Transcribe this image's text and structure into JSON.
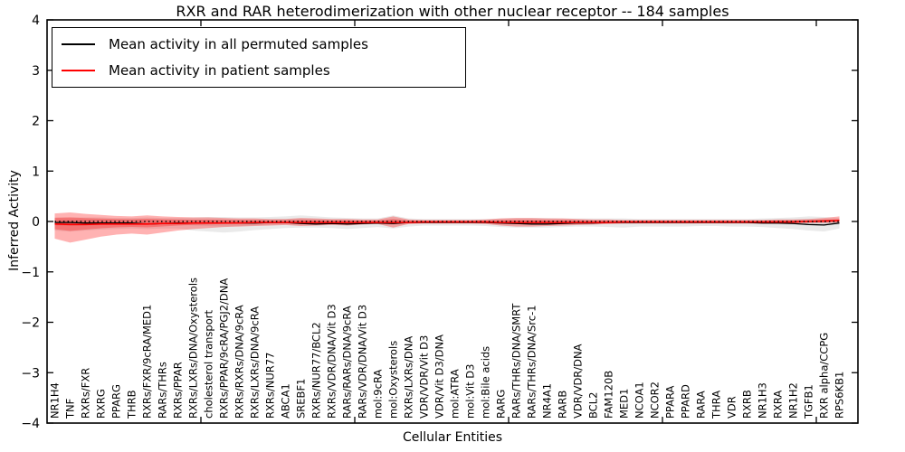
{
  "title": "RXR and RAR heterodimerization with other nuclear receptor -- 184 samples",
  "axes": {
    "ylabel": "Inferred Activity",
    "xlabel": "Cellular Entities",
    "ytick_labels": [
      "4",
      "3",
      "2",
      "1",
      "0",
      "−1",
      "−2",
      "−3",
      "−4"
    ],
    "ytick_values": [
      4,
      3,
      2,
      1,
      0,
      -1,
      -2,
      -3,
      -4
    ]
  },
  "legend": {
    "items": [
      {
        "label": "Mean activity in all permuted samples",
        "color": "#000000"
      },
      {
        "label": "Mean activity in patient samples",
        "color": "#ff0000"
      }
    ]
  },
  "chart_data": {
    "type": "line",
    "title": "RXR and RAR heterodimerization with other nuclear receptor -- 184 samples",
    "xlabel": "Cellular Entities",
    "ylabel": "Inferred Activity",
    "ylim": [
      -4,
      4
    ],
    "grid": false,
    "legend_position": "upper left",
    "zero_line": {
      "y": 0,
      "style": "dotted",
      "color": "#000000"
    },
    "inner_band_scale": 0.45,
    "categories": [
      "NR1H4",
      "TNF",
      "RXRs/FXR",
      "RXRG",
      "PPARG",
      "THRB",
      "RXRs/FXR/9cRA/MED1",
      "RARs/THRs",
      "RXRs/PPAR",
      "RXRs/LXRs/DNA/Oxysterols",
      "cholesterol transport",
      "RXRs/PPAR/9cRA/PGJ2/DNA",
      "RXRs/RXRs/DNA/9cRA",
      "RXRs/LXRs/DNA/9cRA",
      "RXRs/NUR77",
      "ABCA1",
      "SREBF1",
      "RXRs/NUR77/BCL2",
      "RXRs/VDR/DNA/Vit D3",
      "RARs/RARs/DNA/9cRA",
      "RARs/VDR/DNA/Vit D3",
      "mol:9cRA",
      "mol:Oxysterols",
      "RXRs/LXRs/DNA",
      "VDR/VDR/Vit D3",
      "VDR/Vit D3/DNA",
      "mol:ATRA",
      "mol:Vit D3",
      "mol:Bile acids",
      "RARG",
      "RARs/THRs/DNA/SMRT",
      "RARs/THRs/DNA/Src-1",
      "NR4A1",
      "RARB",
      "VDR/VDR/DNA",
      "BCL2",
      "FAM120B",
      "MED1",
      "NCOA1",
      "NCOR2",
      "PPARA",
      "PPARD",
      "RARA",
      "THRA",
      "VDR",
      "RXRB",
      "NR1H3",
      "RXRA",
      "NR1H2",
      "TGFB1",
      "RXR alpha/CCPG",
      "RPS6KB1"
    ],
    "series": [
      {
        "name": "Mean activity in all permuted samples",
        "color": "#000000",
        "band_color": "#888888",
        "values": [
          -0.02,
          -0.02,
          -0.03,
          -0.03,
          -0.03,
          -0.03,
          -0.05,
          -0.04,
          -0.03,
          -0.03,
          -0.03,
          -0.03,
          -0.03,
          -0.03,
          -0.02,
          -0.02,
          -0.04,
          -0.05,
          -0.04,
          -0.05,
          -0.04,
          -0.03,
          -0.04,
          -0.02,
          -0.02,
          -0.02,
          -0.02,
          -0.02,
          -0.02,
          -0.03,
          -0.04,
          -0.05,
          -0.05,
          -0.04,
          -0.03,
          -0.03,
          -0.02,
          -0.02,
          -0.02,
          -0.02,
          -0.02,
          -0.02,
          -0.02,
          -0.02,
          -0.02,
          -0.02,
          -0.03,
          -0.03,
          -0.04,
          -0.06,
          -0.07,
          -0.03
        ],
        "band_upper": [
          0.08,
          0.08,
          0.08,
          0.08,
          0.07,
          0.07,
          0.08,
          0.07,
          0.07,
          0.08,
          0.09,
          0.09,
          0.08,
          0.08,
          0.09,
          0.1,
          0.12,
          0.1,
          0.08,
          0.07,
          0.06,
          0.06,
          0.12,
          0.06,
          0.05,
          0.05,
          0.05,
          0.05,
          0.05,
          0.06,
          0.07,
          0.07,
          0.07,
          0.06,
          0.06,
          0.06,
          0.06,
          0.06,
          0.05,
          0.05,
          0.05,
          0.05,
          0.05,
          0.05,
          0.05,
          0.05,
          0.06,
          0.07,
          0.08,
          0.1,
          0.09,
          0.07
        ],
        "band_lower": [
          -0.18,
          -0.2,
          -0.18,
          -0.16,
          -0.15,
          -0.14,
          -0.15,
          -0.14,
          -0.14,
          -0.18,
          -0.2,
          -0.22,
          -0.2,
          -0.17,
          -0.15,
          -0.13,
          -0.12,
          -0.12,
          -0.13,
          -0.15,
          -0.13,
          -0.11,
          -0.14,
          -0.1,
          -0.08,
          -0.08,
          -0.08,
          -0.08,
          -0.09,
          -0.11,
          -0.12,
          -0.12,
          -0.12,
          -0.11,
          -0.1,
          -0.1,
          -0.11,
          -0.12,
          -0.1,
          -0.1,
          -0.1,
          -0.1,
          -0.09,
          -0.09,
          -0.1,
          -0.1,
          -0.11,
          -0.13,
          -0.15,
          -0.18,
          -0.2,
          -0.14
        ]
      },
      {
        "name": "Mean activity in patient samples",
        "color": "#ff0000",
        "band_color": "#ff0000",
        "values": [
          -0.05,
          -0.06,
          -0.06,
          -0.05,
          -0.05,
          -0.05,
          -0.05,
          -0.04,
          -0.04,
          -0.03,
          -0.03,
          -0.03,
          -0.03,
          -0.02,
          -0.02,
          -0.02,
          -0.02,
          -0.02,
          -0.02,
          -0.02,
          -0.02,
          -0.02,
          -0.02,
          -0.02,
          -0.01,
          -0.01,
          -0.01,
          -0.01,
          -0.01,
          -0.02,
          -0.02,
          -0.02,
          -0.02,
          -0.02,
          -0.02,
          -0.02,
          -0.02,
          -0.01,
          -0.01,
          -0.01,
          -0.01,
          -0.01,
          -0.01,
          -0.01,
          -0.01,
          -0.01,
          -0.01,
          -0.01,
          -0.01,
          0.0,
          0.01,
          0.02
        ],
        "band_upper": [
          0.16,
          0.18,
          0.15,
          0.13,
          0.11,
          0.1,
          0.12,
          0.1,
          0.09,
          0.08,
          0.08,
          0.07,
          0.06,
          0.06,
          0.05,
          0.05,
          0.07,
          0.06,
          0.05,
          0.05,
          0.04,
          0.04,
          0.1,
          0.04,
          0.03,
          0.03,
          0.03,
          0.03,
          0.04,
          0.06,
          0.07,
          0.07,
          0.06,
          0.06,
          0.05,
          0.04,
          0.04,
          0.03,
          0.03,
          0.03,
          0.03,
          0.03,
          0.03,
          0.03,
          0.03,
          0.03,
          0.03,
          0.04,
          0.04,
          0.05,
          0.07,
          0.1
        ],
        "band_lower": [
          -0.34,
          -0.42,
          -0.36,
          -0.3,
          -0.26,
          -0.24,
          -0.26,
          -0.22,
          -0.18,
          -0.15,
          -0.13,
          -0.11,
          -0.1,
          -0.09,
          -0.08,
          -0.07,
          -0.09,
          -0.08,
          -0.07,
          -0.08,
          -0.06,
          -0.05,
          -0.12,
          -0.05,
          -0.04,
          -0.04,
          -0.04,
          -0.04,
          -0.05,
          -0.08,
          -0.1,
          -0.1,
          -0.09,
          -0.08,
          -0.07,
          -0.06,
          -0.05,
          -0.04,
          -0.04,
          -0.04,
          -0.04,
          -0.04,
          -0.04,
          -0.04,
          -0.04,
          -0.04,
          -0.04,
          -0.04,
          -0.04,
          -0.03,
          -0.03,
          -0.02
        ]
      }
    ]
  }
}
